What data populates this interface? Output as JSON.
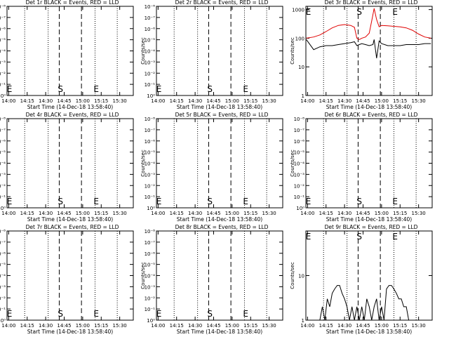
{
  "figure": {
    "start_time_label": "Start Time (14-Dec-18 13:58:40)",
    "x_tick_labels": [
      "14:00",
      "14:15",
      "14:30",
      "14:45",
      "15:00",
      "15:15",
      "15:30"
    ],
    "y_label": "Counts/sec",
    "colors": {
      "events": "#000000",
      "lld": "#e00000",
      "axes": "#000000",
      "background": "#ffffff"
    }
  },
  "chart_data": [
    {
      "type": "line",
      "title": "Det 1r BLACK = Events, RED = LLD",
      "x_start": "13:58:40",
      "xlim": [
        "13:58:40",
        "15:41:00"
      ],
      "y_scale": "log",
      "y_tick_labels": [
        "10⁰",
        "10⁻¹",
        "10⁻²",
        "10⁻³",
        "10⁻⁴",
        "10⁻⁵",
        "10⁻⁶",
        "10⁻⁷",
        "10⁻⁸"
      ],
      "ylim": [
        1e-08,
        1
      ],
      "dotted_lines": [
        "14:13",
        "14:32",
        "15:10",
        "15:28"
      ],
      "dashed_lines": [
        "14:41",
        "14:59"
      ],
      "markers": [
        {
          "label": "S",
          "x": "14:42"
        },
        {
          "label": "E",
          "x": "15:11"
        },
        {
          "label": "E",
          "x": "13:59"
        }
      ],
      "series": []
    },
    {
      "type": "line",
      "title": "Det 2r BLACK = Events, RED = LLD",
      "x_start": "13:58:40",
      "xlim": [
        "13:58:40",
        "15:41:00"
      ],
      "y_scale": "log",
      "y_tick_labels": [
        "10⁰",
        "10⁻¹",
        "10⁻²",
        "10⁻³",
        "10⁻⁴",
        "10⁻⁵",
        "10⁻⁶",
        "10⁻⁷",
        "10⁻⁸"
      ],
      "ylim": [
        1e-08,
        1
      ],
      "dotted_lines": [
        "14:13",
        "14:32",
        "15:10",
        "15:28"
      ],
      "dashed_lines": [
        "14:41",
        "14:59"
      ],
      "markers": [
        {
          "label": "S",
          "x": "14:42"
        },
        {
          "label": "E",
          "x": "15:11"
        },
        {
          "label": "E",
          "x": "13:59"
        }
      ],
      "series": []
    },
    {
      "type": "line",
      "title": "Det 3r BLACK = Events, RED = LLD",
      "x_start": "13:58:40",
      "xlim": [
        "13:58:40",
        "15:41:00"
      ],
      "y_scale": "log",
      "y_tick_labels": [
        "1",
        "10",
        "100",
        "1000"
      ],
      "ylim": [
        1,
        1300
      ],
      "dotted_lines": [
        "14:13",
        "14:32",
        "15:10",
        "15:28"
      ],
      "dashed_lines": [
        "14:41",
        "14:59"
      ],
      "markers": [
        {
          "label": "S",
          "x": "14:42"
        },
        {
          "label": "E",
          "x": "15:11"
        },
        {
          "label": "E",
          "x": "13:59"
        }
      ],
      "series": [
        {
          "color": "#000000",
          "x": [
            "13:59",
            "14:05",
            "14:10",
            "14:15",
            "14:20",
            "14:25",
            "14:30",
            "14:35",
            "14:38",
            "14:40",
            "14:42",
            "14:44",
            "14:47",
            "14:50",
            "14:53",
            "14:54",
            "14:56",
            "14:58",
            "15:00",
            "15:05",
            "15:10",
            "15:15",
            "15:20",
            "15:25",
            "15:30",
            "15:35",
            "15:40"
          ],
          "values": [
            90,
            40,
            50,
            55,
            55,
            60,
            65,
            70,
            75,
            55,
            60,
            65,
            60,
            55,
            60,
            90,
            20,
            80,
            65,
            55,
            55,
            55,
            60,
            60,
            60,
            65,
            65
          ]
        },
        {
          "color": "#e00000",
          "x": [
            "13:59",
            "14:05",
            "14:10",
            "14:15",
            "14:20",
            "14:25",
            "14:30",
            "14:35",
            "14:38",
            "14:40",
            "14:42",
            "14:44",
            "14:47",
            "14:50",
            "14:52",
            "14:54",
            "14:56",
            "14:58",
            "15:00",
            "15:05",
            "15:10",
            "15:15",
            "15:20",
            "15:25",
            "15:30",
            "15:35",
            "15:40"
          ],
          "values": [
            100,
            110,
            130,
            170,
            230,
            280,
            300,
            280,
            240,
            100,
            90,
            100,
            110,
            150,
            400,
            1100,
            450,
            250,
            280,
            270,
            260,
            250,
            230,
            190,
            140,
            110,
            100
          ]
        }
      ]
    },
    {
      "type": "line",
      "title": "Det 4r BLACK = Events, RED = LLD",
      "x_start": "13:58:40",
      "xlim": [
        "13:58:40",
        "15:41:00"
      ],
      "y_scale": "log",
      "y_tick_labels": [
        "10⁰",
        "10⁻¹",
        "10⁻²",
        "10⁻³",
        "10⁻⁴",
        "10⁻⁵",
        "10⁻⁶",
        "10⁻⁷",
        "10⁻⁸"
      ],
      "ylim": [
        1e-08,
        1
      ],
      "dotted_lines": [
        "14:13",
        "14:32",
        "15:10",
        "15:28"
      ],
      "dashed_lines": [
        "14:41",
        "14:59"
      ],
      "markers": [
        {
          "label": "S",
          "x": "14:42"
        },
        {
          "label": "E",
          "x": "15:11"
        },
        {
          "label": "E",
          "x": "13:59"
        }
      ],
      "series": []
    },
    {
      "type": "line",
      "title": "Det 5r BLACK = Events, RED = LLD",
      "x_start": "13:58:40",
      "xlim": [
        "13:58:40",
        "15:41:00"
      ],
      "y_scale": "log",
      "y_tick_labels": [
        "10⁰",
        "10⁻¹",
        "10⁻²",
        "10⁻³",
        "10⁻⁴",
        "10⁻⁵",
        "10⁻⁶",
        "10⁻⁷",
        "10⁻⁸"
      ],
      "ylim": [
        1e-08,
        1
      ],
      "dotted_lines": [
        "14:13",
        "14:32",
        "15:10",
        "15:28"
      ],
      "dashed_lines": [
        "14:41",
        "14:59"
      ],
      "markers": [
        {
          "label": "S",
          "x": "14:42"
        },
        {
          "label": "E",
          "x": "15:11"
        },
        {
          "label": "E",
          "x": "13:59"
        }
      ],
      "series": []
    },
    {
      "type": "line",
      "title": "Det 6r BLACK = Events, RED = LLD",
      "x_start": "13:58:40",
      "xlim": [
        "13:58:40",
        "15:41:00"
      ],
      "y_scale": "log",
      "y_tick_labels": [
        "10⁰",
        "10⁻¹",
        "10⁻²",
        "10⁻³",
        "10⁻⁴",
        "10⁻⁵",
        "10⁻⁶",
        "10⁻⁷",
        "10⁻⁸"
      ],
      "ylim": [
        1e-08,
        1
      ],
      "dotted_lines": [
        "14:13",
        "14:32",
        "15:10",
        "15:28"
      ],
      "dashed_lines": [
        "14:41",
        "14:59"
      ],
      "markers": [
        {
          "label": "S",
          "x": "14:42"
        },
        {
          "label": "E",
          "x": "15:11"
        },
        {
          "label": "E",
          "x": "13:59"
        }
      ],
      "series": []
    },
    {
      "type": "line",
      "title": "Det 7r BLACK = Events, RED = LLD",
      "x_start": "13:58:40",
      "xlim": [
        "13:58:40",
        "15:41:00"
      ],
      "y_scale": "log",
      "y_tick_labels": [
        "10⁰",
        "10⁻¹",
        "10⁻²",
        "10⁻³",
        "10⁻⁴",
        "10⁻⁵",
        "10⁻⁶",
        "10⁻⁷",
        "10⁻⁸"
      ],
      "ylim": [
        1e-08,
        1
      ],
      "dotted_lines": [
        "14:13",
        "14:32",
        "15:10",
        "15:28"
      ],
      "dashed_lines": [
        "14:41",
        "14:59"
      ],
      "markers": [
        {
          "label": "S",
          "x": "14:42"
        },
        {
          "label": "E",
          "x": "15:11"
        },
        {
          "label": "E",
          "x": "13:59"
        }
      ],
      "series": []
    },
    {
      "type": "line",
      "title": "Det 8r BLACK = Events, RED = LLD",
      "x_start": "13:58:40",
      "xlim": [
        "13:58:40",
        "15:41:00"
      ],
      "y_scale": "log",
      "y_tick_labels": [
        "10⁰",
        "10⁻¹",
        "10⁻²",
        "10⁻³",
        "10⁻⁴",
        "10⁻⁵",
        "10⁻⁶",
        "10⁻⁷",
        "10⁻⁸"
      ],
      "ylim": [
        1e-08,
        1
      ],
      "dotted_lines": [
        "14:13",
        "14:32",
        "15:10",
        "15:28"
      ],
      "dashed_lines": [
        "14:41",
        "14:59"
      ],
      "markers": [
        {
          "label": "S",
          "x": "14:42"
        },
        {
          "label": "E",
          "x": "15:11"
        },
        {
          "label": "E",
          "x": "13:59"
        }
      ],
      "series": []
    },
    {
      "type": "line",
      "title": "Det 9r BLACK = Events, RED = LLD",
      "x_start": "13:58:40",
      "xlim": [
        "13:58:40",
        "15:41:00"
      ],
      "y_scale": "log",
      "y_tick_labels": [
        "1",
        "10"
      ],
      "ylim": [
        1,
        100
      ],
      "dotted_lines": [
        "14:13",
        "14:32",
        "15:10",
        "15:28"
      ],
      "dashed_lines": [
        "14:41",
        "14:59"
      ],
      "markers": [
        {
          "label": "S",
          "x": "14:42"
        },
        {
          "label": "E",
          "x": "15:11"
        },
        {
          "label": "E",
          "x": "13:59"
        }
      ],
      "series": [
        {
          "color": "#000000",
          "x": [
            "14:10",
            "14:12",
            "14:14",
            "14:16",
            "14:18",
            "14:20",
            "14:22",
            "14:24",
            "14:26",
            "14:28",
            "14:30",
            "14:32",
            "14:34",
            "14:36",
            "14:38",
            "14:40",
            "14:42",
            "14:44",
            "14:46",
            "14:48",
            "14:50",
            "14:52",
            "14:54",
            "14:56",
            "14:58",
            "15:00",
            "15:02",
            "15:04",
            "15:06",
            "15:08",
            "15:10",
            "15:12",
            "15:14",
            "15:16",
            "15:18",
            "15:20",
            "15:22"
          ],
          "values": [
            1,
            2,
            1,
            3,
            2,
            4,
            5,
            6,
            6,
            4,
            3,
            2,
            1,
            2,
            1,
            2,
            1,
            2,
            1,
            3,
            2,
            1,
            2,
            3,
            1,
            2,
            1,
            5,
            6,
            6,
            5,
            4,
            3,
            3,
            2,
            2,
            1
          ]
        }
      ]
    }
  ]
}
